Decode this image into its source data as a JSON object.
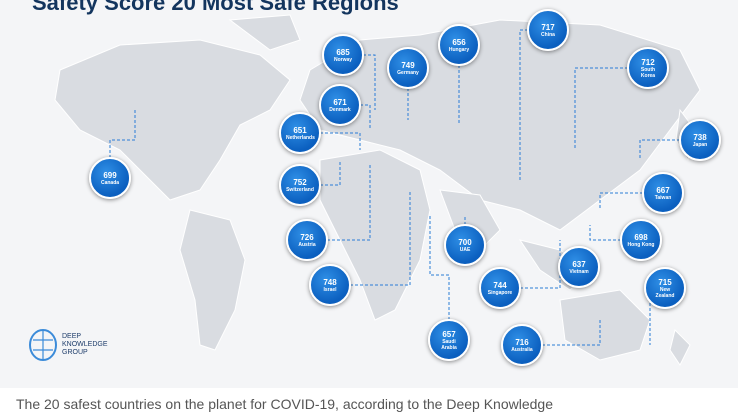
{
  "header": {
    "title": "Safety Score 20 Most Safe Regions"
  },
  "regions": [
    {
      "score": 699,
      "name": "Canada"
    },
    {
      "score": 685,
      "name": "Norway"
    },
    {
      "score": 749,
      "name": "Germany"
    },
    {
      "score": 656,
      "name": "Hungary"
    },
    {
      "score": 717,
      "name": "China"
    },
    {
      "score": 712,
      "name": "South Korea"
    },
    {
      "score": 671,
      "name": "Denmark"
    },
    {
      "score": 651,
      "name": "Netherlands"
    },
    {
      "score": 738,
      "name": "Japan"
    },
    {
      "score": 752,
      "name": "Switzerland"
    },
    {
      "score": 667,
      "name": "Taiwan"
    },
    {
      "score": 726,
      "name": "Austria"
    },
    {
      "score": 700,
      "name": "UAE"
    },
    {
      "score": 698,
      "name": "Hong Kong"
    },
    {
      "score": 637,
      "name": "Vietnam"
    },
    {
      "score": 748,
      "name": "Israel"
    },
    {
      "score": 744,
      "name": "Singapore"
    },
    {
      "score": 715,
      "name": "New Zealand"
    },
    {
      "score": 657,
      "name": "Saudi Arabia"
    },
    {
      "score": 716,
      "name": "Australia"
    }
  ],
  "logo": "DEEP KNOWLEDGE GROUP",
  "caption": "The 20 safest countries on the planet for COVID-19, according to the Deep Knowledge"
}
